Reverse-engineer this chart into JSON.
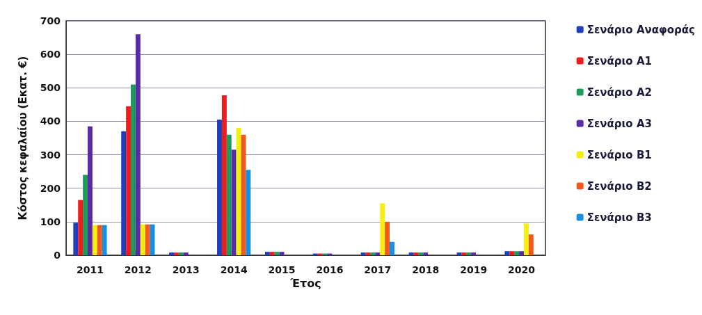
{
  "chart_data": {
    "type": "bar",
    "xlabel": "Έτος",
    "ylabel": "Κόστος κεφαλαίου (Εκατ. €)",
    "categories": [
      "2011",
      "2012",
      "2013",
      "2014",
      "2015",
      "2016",
      "2017",
      "2018",
      "2019",
      "2020"
    ],
    "series": [
      {
        "name": "Σενάριο Αναφοράς",
        "color": "#1f3fbf",
        "values": [
          97,
          370,
          8,
          405,
          10,
          5,
          8,
          8,
          8,
          12
        ]
      },
      {
        "name": "Σενάριο Α1",
        "color": "#ee1c1c",
        "values": [
          165,
          445,
          8,
          478,
          10,
          5,
          8,
          8,
          8,
          12
        ]
      },
      {
        "name": "Σενάριο Α2",
        "color": "#1e9a5a",
        "values": [
          240,
          510,
          8,
          360,
          10,
          5,
          8,
          8,
          8,
          12
        ]
      },
      {
        "name": "Σενάριο Α3",
        "color": "#5b2aa8",
        "values": [
          385,
          660,
          8,
          315,
          10,
          5,
          8,
          8,
          8,
          12
        ]
      },
      {
        "name": "Σενάριο Β1",
        "color": "#f5ef10",
        "values": [
          90,
          92,
          0,
          380,
          0,
          0,
          155,
          0,
          0,
          95
        ]
      },
      {
        "name": "Σενάριο Β2",
        "color": "#f05a1e",
        "values": [
          90,
          92,
          0,
          360,
          0,
          0,
          100,
          0,
          0,
          62
        ]
      },
      {
        "name": "Σενάριο Β3",
        "color": "#1a8fe0",
        "values": [
          90,
          92,
          0,
          255,
          0,
          0,
          40,
          0,
          0,
          0
        ]
      }
    ],
    "ylim": [
      0,
      700
    ],
    "yticks": [
      0,
      100,
      200,
      300,
      400,
      500,
      600,
      700
    ],
    "grid": "y",
    "legend": "right"
  }
}
